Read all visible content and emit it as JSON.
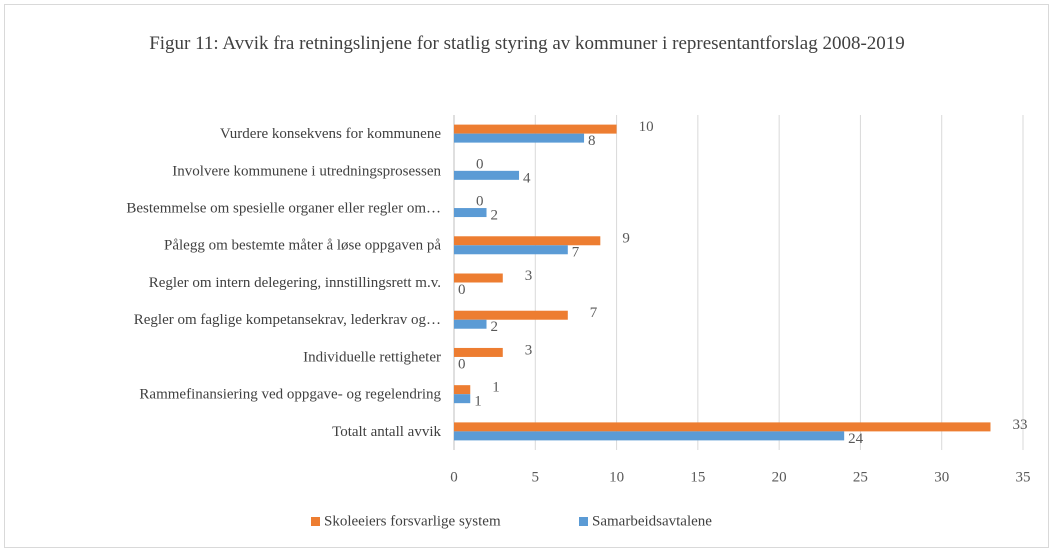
{
  "chart_data": {
    "type": "hbar",
    "title": "Figur 11: Avvik fra retningslinjene  for statlig styring av kommuner i representantforslag 2008-2019",
    "categories": [
      "Vurdere konsekvens for kommunene",
      "Involvere kommunene i utredningsprosessen",
      "Bestemmelse om spesielle organer eller regler om…",
      "Pålegg om bestemte måter å løse oppgaven på",
      "Regler om intern delegering, innstillingsrett m.v.",
      "Regler om faglige kompetansekrav, lederkrav og…",
      "Individuelle rettigheter",
      "Rammefinansiering ved oppgave- og regelendring",
      "Totalt antall avvik"
    ],
    "series": [
      {
        "name": "Skoleeiers forsvarlige system",
        "color": "#ed7d31",
        "values": [
          10,
          0,
          0,
          9,
          3,
          7,
          3,
          1,
          33
        ]
      },
      {
        "name": "Samarbeidsavtalene",
        "color": "#5b9bd5",
        "values": [
          8,
          4,
          2,
          7,
          0,
          2,
          0,
          1,
          24
        ]
      }
    ],
    "xlim": [
      0,
      35
    ],
    "xticks": [
      0,
      5,
      10,
      15,
      20,
      25,
      30,
      35
    ],
    "grid": true,
    "legend": "bottom"
  }
}
